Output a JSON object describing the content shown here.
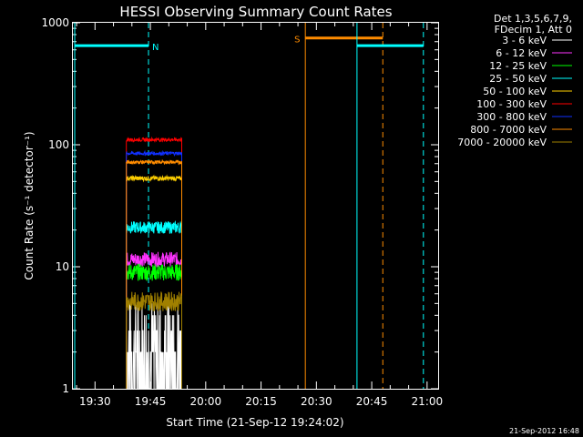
{
  "chart_data": {
    "type": "line",
    "title": "HESSI Observing Summary Count Rates",
    "xlabel": "Start Time (21-Sep-12 19:24:02)",
    "ylabel": "Count Rate (s⁻¹ detector⁻¹)",
    "y_scale": "log",
    "ylim": [
      1,
      1000
    ],
    "xlim": [
      "19:24",
      "21:03"
    ],
    "x_ticks": [
      "19:30",
      "19:45",
      "20:00",
      "20:15",
      "20:30",
      "20:45",
      "21:00"
    ],
    "y_ticks": [
      {
        "value": 1,
        "label": "1"
      },
      {
        "value": 10,
        "label": "10"
      },
      {
        "value": 100,
        "label": "100"
      },
      {
        "value": 1000,
        "label": "1000"
      }
    ],
    "legend_header": [
      "Det 1,3,5,6,7,9,",
      "FDecim 1, Att 0"
    ],
    "legend_position": "top-right, outside plot",
    "series": [
      {
        "name": "3 - 6 keV",
        "color": "#ffffff",
        "start": "19:38:30",
        "end": "19:53:30",
        "level": 2.0,
        "jitter": 0.45
      },
      {
        "name": "6 - 12 keV",
        "color": "#ff33ff",
        "start": "19:38:30",
        "end": "19:53:30",
        "level": 11.5,
        "jitter": 0.06
      },
      {
        "name": "12 - 25 keV",
        "color": "#00ff00",
        "start": "19:38:30",
        "end": "19:53:30",
        "level": 9.0,
        "jitter": 0.07
      },
      {
        "name": "25 - 50 keV",
        "color": "#00ffff",
        "start": "19:38:30",
        "end": "19:53:30",
        "level": 21.0,
        "jitter": 0.05
      },
      {
        "name": "50 - 100 keV",
        "color": "#ffd000",
        "start": "19:38:30",
        "end": "19:53:30",
        "level": 53.0,
        "jitter": 0.02
      },
      {
        "name": "100 - 300 keV",
        "color": "#ff0000",
        "start": "19:38:30",
        "end": "19:53:30",
        "level": 110.0,
        "jitter": 0.015
      },
      {
        "name": "300 - 800 keV",
        "color": "#1030ff",
        "start": "19:38:30",
        "end": "19:53:30",
        "level": 85.0,
        "jitter": 0.015
      },
      {
        "name": "800 - 7000 keV",
        "color": "#ff8c00",
        "start": "19:38:30",
        "end": "19:53:30",
        "level": 72.0,
        "jitter": 0.015
      },
      {
        "name": "7000 - 20000 keV",
        "color": "#a08000",
        "start": "19:38:30",
        "end": "19:53:30",
        "level": 5.2,
        "jitter": 0.08
      }
    ],
    "flags": [
      {
        "label": "N",
        "type": "night",
        "color": "#00ffff",
        "start": "19:24:30",
        "end": "19:44:30",
        "level": 650
      },
      {
        "label": "S",
        "type": "SAA",
        "color": "#ff8c00",
        "start": "20:27:00",
        "end": "20:48:00",
        "level": 750
      },
      {
        "label": "",
        "type": "night",
        "color": "#00ffff",
        "start": "20:41:00",
        "end": "20:59:00",
        "level": 650
      }
    ]
  },
  "timestamp": "21-Sep-2012 16:48"
}
